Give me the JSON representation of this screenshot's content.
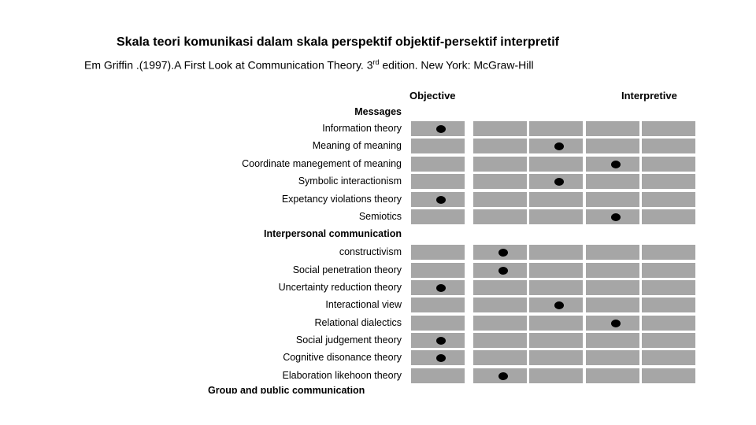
{
  "header": {
    "title": "Skala teori komunikasi dalam skala perspektif objektif-persektif interpretif",
    "citation_before": "Em Griffin .(1997).A First Look at Communication Theory. 3",
    "citation_sup": "rd",
    "citation_after": " edition. New York: McGraw-Hill"
  },
  "scale": {
    "left_label": "Objective",
    "right_label": "Interpretive",
    "columns": 5
  },
  "sections": [
    {
      "title": "Messages",
      "rows": [
        {
          "label": "Information theory",
          "position": 1
        },
        {
          "label": "Meaning of meaning",
          "position": 3
        },
        {
          "label": "Coordinate manegement of meaning",
          "position": 4
        },
        {
          "label": "Symbolic interactionism",
          "position": 3
        },
        {
          "label": "Expetancy violations theory",
          "position": 1
        },
        {
          "label": "Semiotics",
          "position": 4
        }
      ]
    },
    {
      "title": "Interpersonal communication",
      "rows": [
        {
          "label": "constructivism",
          "position": 2
        },
        {
          "label": "Social penetration theory",
          "position": 2
        },
        {
          "label": "Uncertainty reduction theory",
          "position": 1
        },
        {
          "label": "Interactional view",
          "position": 3
        },
        {
          "label": "Relational dialectics",
          "position": 4
        },
        {
          "label": "Social judgement theory",
          "position": 1
        },
        {
          "label": "Cognitive disonance theory",
          "position": 1
        },
        {
          "label": "Elaboration likehoon theory",
          "position": 2
        }
      ]
    }
  ],
  "cutoff_text": "Group and public communication",
  "colors": {
    "cell": "#a6a6a6",
    "dot": "#000000"
  }
}
